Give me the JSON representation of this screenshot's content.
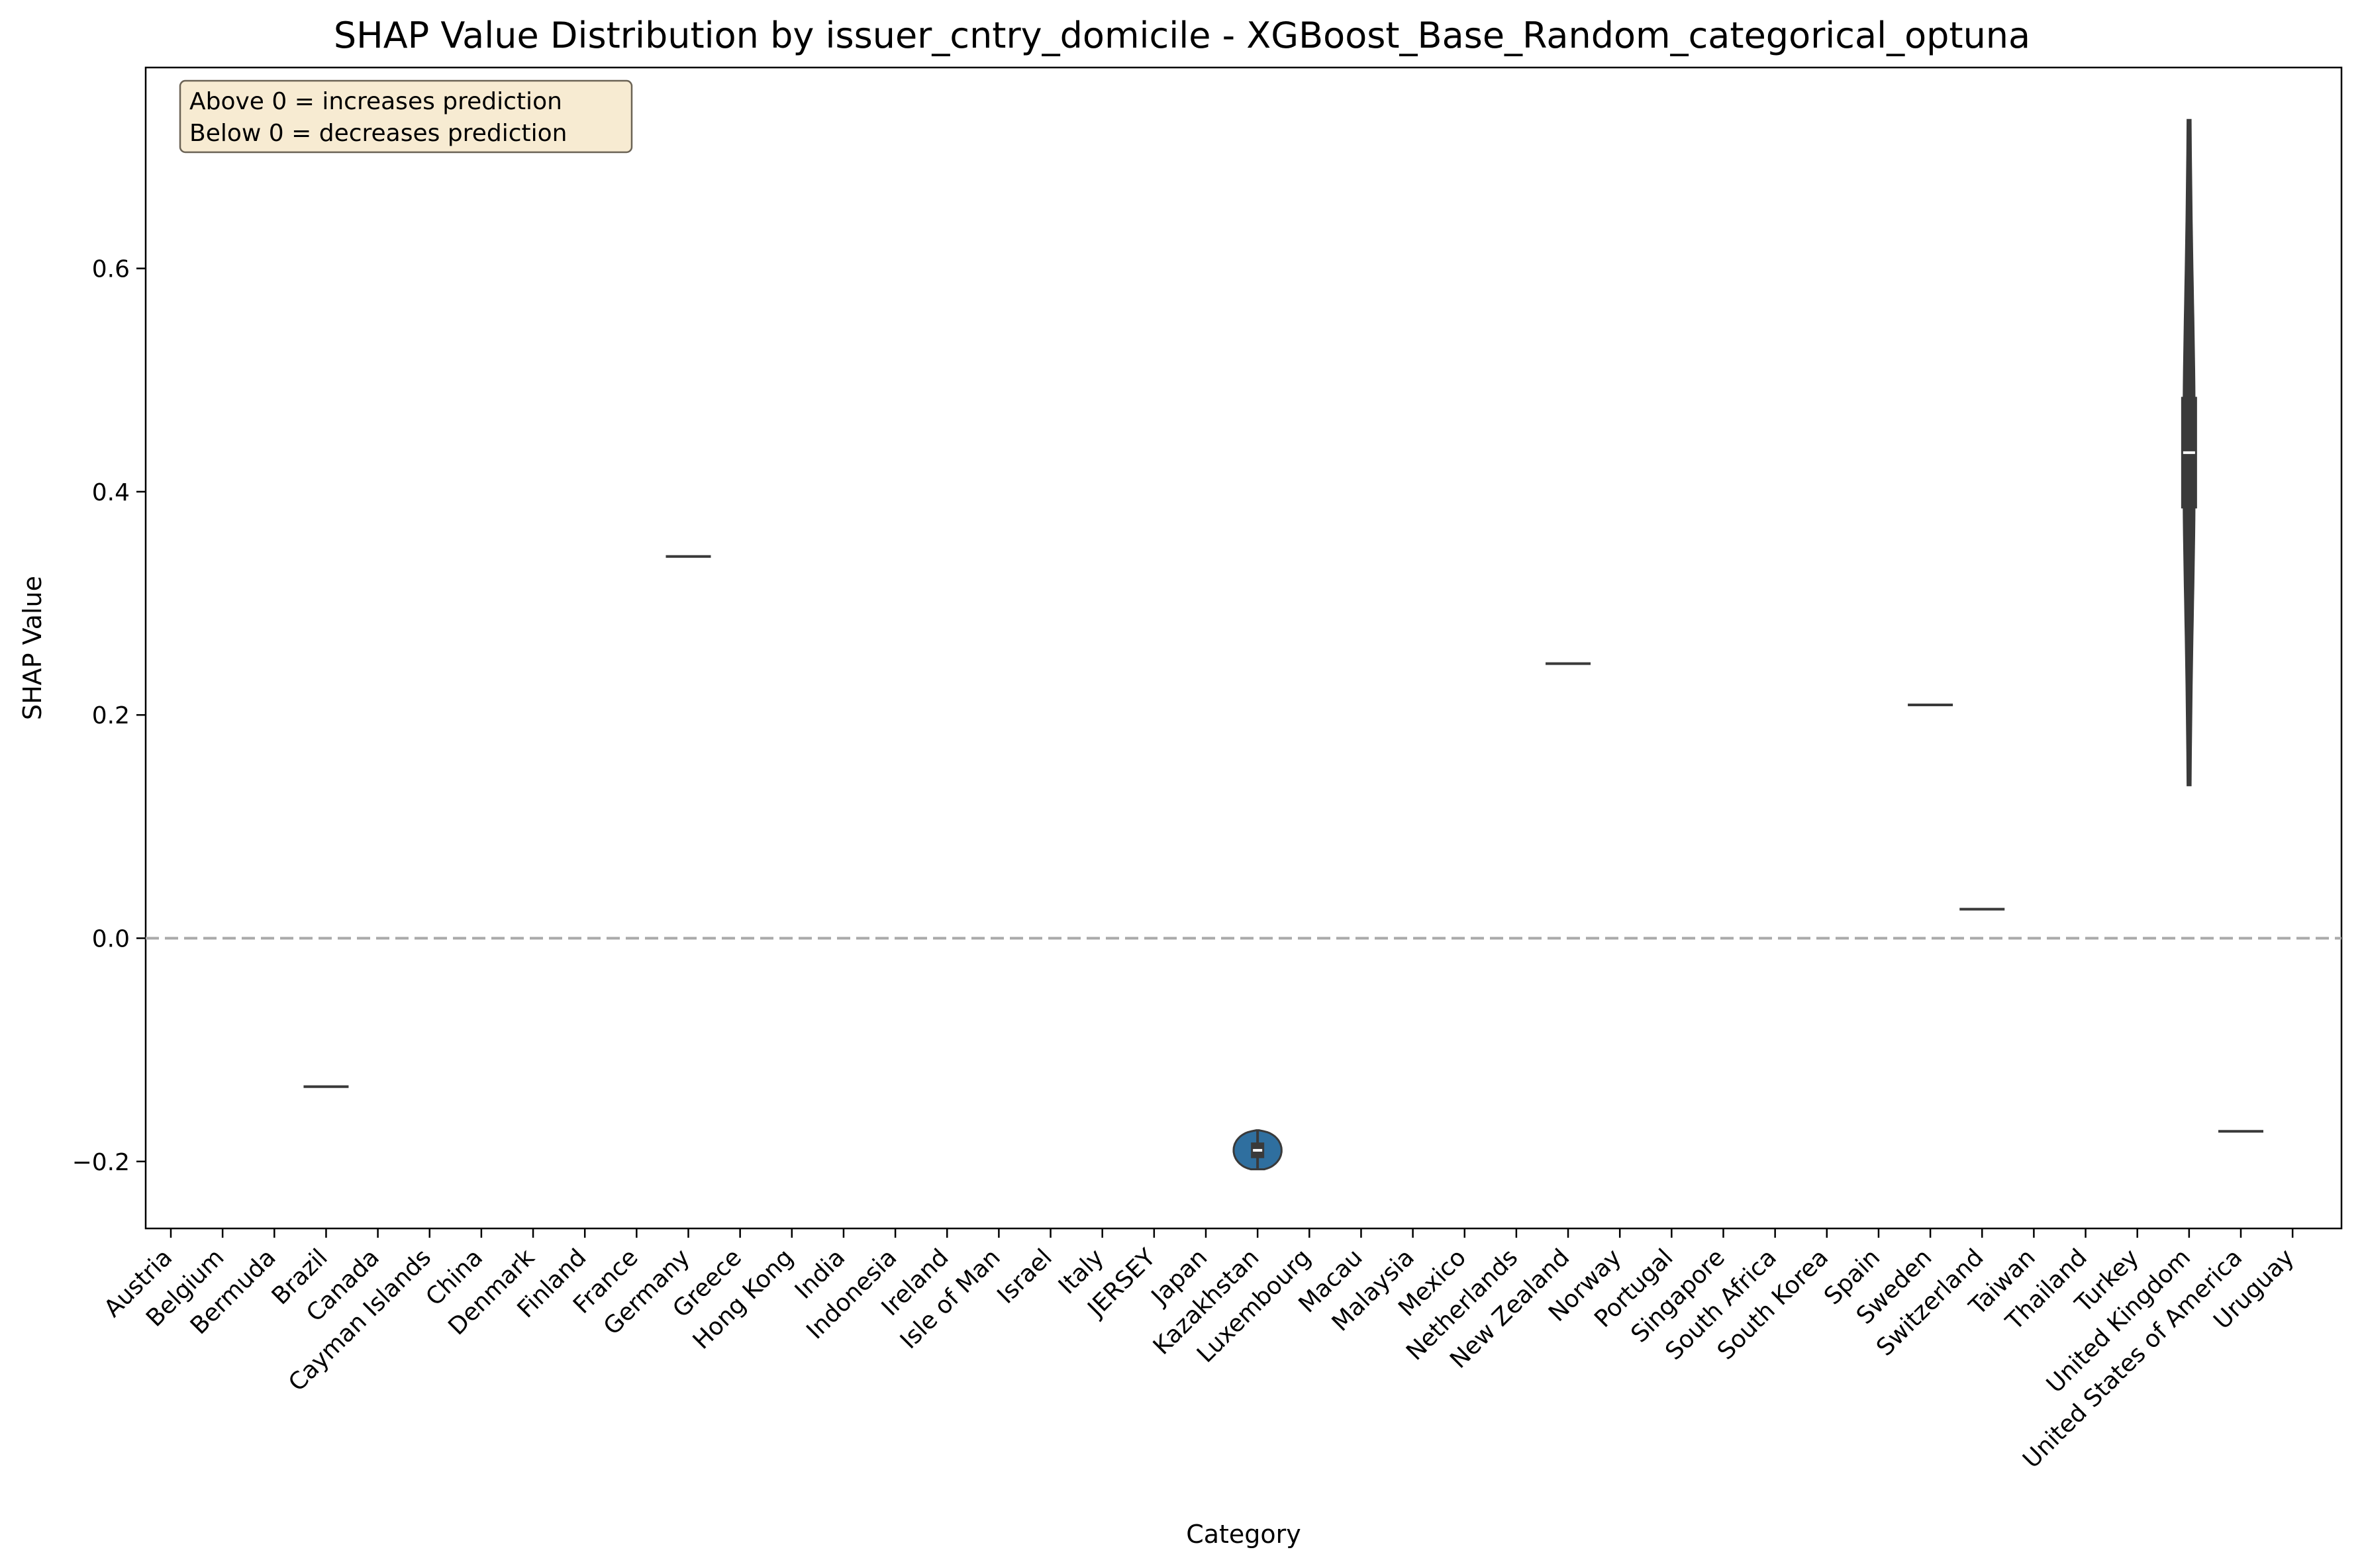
{
  "chart_data": {
    "type": "violin",
    "title": "SHAP Value Distribution by issuer_cntry_domicile - XGBoost_Base_Random_categorical_optuna",
    "xlabel": "Category",
    "ylabel": "SHAP Value",
    "ylim": [
      -0.26,
      0.78
    ],
    "y_ticks": [
      -0.2,
      0.0,
      0.2,
      0.4,
      0.6
    ],
    "y_tick_labels": [
      "−0.2",
      "0.0",
      "0.2",
      "0.4",
      "0.6"
    ],
    "reference_line": {
      "y": 0.0,
      "style": "dashed",
      "color": "#aaaaaa"
    },
    "annotation": [
      "Above 0 = increases prediction",
      "Below 0 = decreases prediction"
    ],
    "annotation_position": "top-left",
    "violin_color": "#2f6f9f",
    "categories": [
      "Austria",
      "Belgium",
      "Bermuda",
      "Brazil",
      "Canada",
      "Cayman Islands",
      "China",
      "Denmark",
      "Finland",
      "France",
      "Germany",
      "Greece",
      "Hong Kong",
      "India",
      "Indonesia",
      "Ireland",
      "Isle of Man",
      "Israel",
      "Italy",
      "JERSEY",
      "Japan",
      "Kazakhstan",
      "Luxembourg",
      "Macau",
      "Malaysia",
      "Mexico",
      "Netherlands",
      "New Zealand",
      "Norway",
      "Portugal",
      "Singapore",
      "South Africa",
      "South Korea",
      "Spain",
      "Sweden",
      "Switzerland",
      "Taiwan",
      "Thailand",
      "Turkey",
      "United Kingdom",
      "United States of America",
      "Uruguay"
    ],
    "series": [
      {
        "category": "Brazil",
        "kind": "single",
        "value": -0.133
      },
      {
        "category": "Germany",
        "kind": "single",
        "value": 0.342
      },
      {
        "category": "Kazakhstan",
        "kind": "violin",
        "min": -0.207,
        "q1": -0.197,
        "median": -0.19,
        "q3": -0.183,
        "max": -0.172
      },
      {
        "category": "New Zealand",
        "kind": "single",
        "value": 0.246
      },
      {
        "category": "Sweden",
        "kind": "single",
        "value": 0.209
      },
      {
        "category": "Switzerland",
        "kind": "single",
        "value": 0.026
      },
      {
        "category": "United Kingdom",
        "kind": "violin",
        "min": 0.137,
        "q1": 0.385,
        "median": 0.435,
        "q3": 0.485,
        "max": 0.733
      },
      {
        "category": "United States of America",
        "kind": "single",
        "value": -0.173
      }
    ]
  }
}
